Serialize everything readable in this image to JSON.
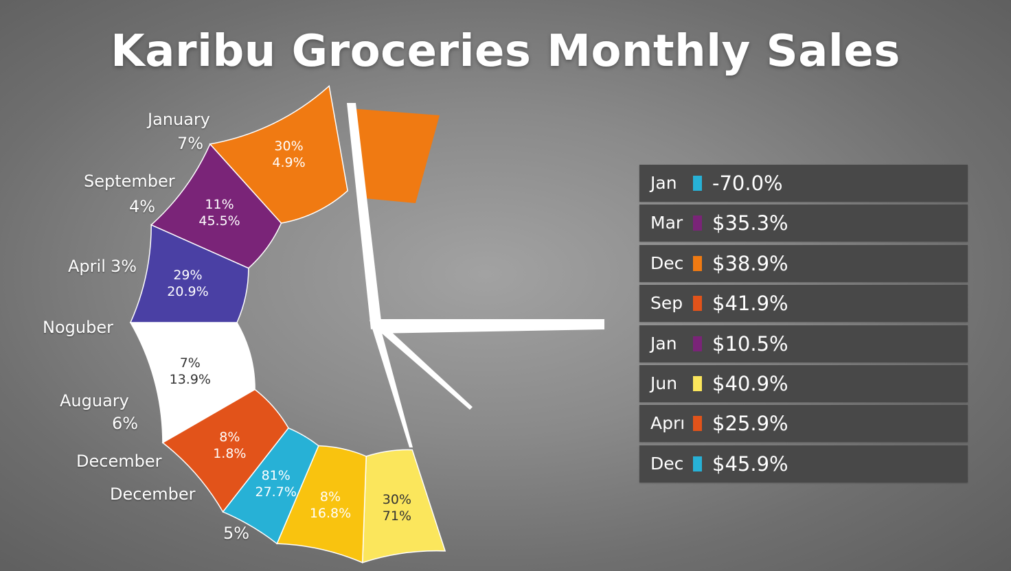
{
  "colors": {
    "orange": "#f07a12",
    "purple": "#7a2478",
    "indigo": "#4a40a4",
    "white": "#ffffff",
    "red_orange": "#e2531a",
    "cyan": "#27b1d6",
    "yellow": "#f9c30f",
    "light_yellow": "#fbe65c",
    "hands": "#ffffff",
    "table_row": "#484848"
  },
  "chart_data": {
    "type": "pie",
    "title": "Karibu Groceries Monthly Sales",
    "segments": [
      {
        "color": "light_yellow",
        "text_color": "#333333",
        "value1": "30%",
        "value2": "71%"
      },
      {
        "color": "yellow",
        "text_color": "#ffffff",
        "value1": "8%",
        "value2": "16.8%"
      },
      {
        "color": "cyan",
        "text_color": "#ffffff",
        "value1": "81%",
        "value2": "27.7%"
      },
      {
        "color": "red_orange",
        "text_color": "#ffffff",
        "value1": "8%",
        "value2": "1.8%"
      },
      {
        "color": "white",
        "text_color": "#333333",
        "value1": "7%",
        "value2": "13.9%"
      },
      {
        "color": "indigo",
        "text_color": "#ffffff",
        "value1": "29%",
        "value2": "20.9%"
      },
      {
        "color": "purple",
        "text_color": "#ffffff",
        "value1": "11%",
        "value2": "45.5%"
      },
      {
        "color": "orange",
        "text_color": "#ffffff",
        "value1": "30%",
        "value2": "4.9%"
      }
    ],
    "outer_labels": [
      {
        "name": "January",
        "value": "7%"
      },
      {
        "name": "September",
        "value": "4%"
      },
      {
        "name": "April",
        "value": "3%"
      },
      {
        "name": "Noguber",
        "value": ""
      },
      {
        "name": "Auguary",
        "value": "6%"
      },
      {
        "name": "December",
        "value": ""
      },
      {
        "name": "December",
        "value": "5%"
      }
    ],
    "detached_segment": {
      "color": "orange"
    },
    "table": [
      {
        "month": "Jan",
        "swatch": "cyan",
        "value": "-70.0%"
      },
      {
        "month": "Mar",
        "swatch": "purple",
        "value": "$35.3%"
      },
      {
        "month": "Dec",
        "swatch": "orange",
        "value": "$38.9%"
      },
      {
        "month": "Sep",
        "swatch": "red_orange",
        "value": "$41.9%"
      },
      {
        "month": "Jan",
        "swatch": "purple",
        "value": "$10.5%"
      },
      {
        "month": "Jun",
        "swatch": "light_yellow",
        "value": "$40.9%"
      },
      {
        "month": "Aprı",
        "swatch": "red_orange",
        "value": "$25.9%"
      },
      {
        "month": "Dec",
        "swatch": "cyan",
        "value": "$45.9%"
      }
    ]
  }
}
